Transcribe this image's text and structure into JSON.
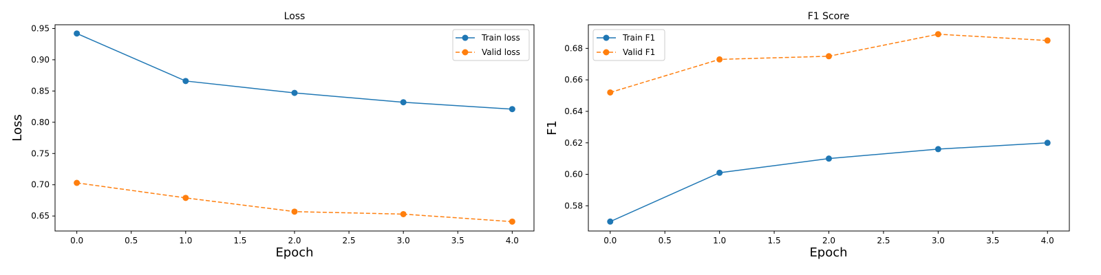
{
  "chart_data": [
    {
      "type": "line",
      "title": "Loss",
      "xlabel": "Epoch",
      "ylabel": "Loss",
      "xlim": [
        -0.2,
        4.2
      ],
      "ylim": [
        0.626,
        0.956
      ],
      "xticks": [
        0.0,
        0.5,
        1.0,
        1.5,
        2.0,
        2.5,
        3.0,
        3.5,
        4.0
      ],
      "xtick_labels": [
        "0.0",
        "0.5",
        "1.0",
        "1.5",
        "2.0",
        "2.5",
        "3.0",
        "3.5",
        "4.0"
      ],
      "yticks": [
        0.65,
        0.7,
        0.75,
        0.8,
        0.85,
        0.9,
        0.95
      ],
      "ytick_labels": [
        "0.65",
        "0.70",
        "0.75",
        "0.80",
        "0.85",
        "0.90",
        "0.95"
      ],
      "grid": false,
      "legend_position": "top-right",
      "x": [
        0,
        1,
        2,
        3,
        4
      ],
      "series": [
        {
          "name": "Train loss",
          "values": [
            0.942,
            0.866,
            0.847,
            0.832,
            0.821
          ],
          "color": "#1f77b4",
          "dash": "solid"
        },
        {
          "name": "Valid loss",
          "values": [
            0.703,
            0.679,
            0.657,
            0.653,
            0.641
          ],
          "color": "#ff7f0e",
          "dash": "dashed"
        }
      ]
    },
    {
      "type": "line",
      "title": "F1 Score",
      "xlabel": "Epoch",
      "ylabel": "F1",
      "xlim": [
        -0.2,
        4.2
      ],
      "ylim": [
        0.564,
        0.695
      ],
      "xticks": [
        0.0,
        0.5,
        1.0,
        1.5,
        2.0,
        2.5,
        3.0,
        3.5,
        4.0
      ],
      "xtick_labels": [
        "0.0",
        "0.5",
        "1.0",
        "1.5",
        "2.0",
        "2.5",
        "3.0",
        "3.5",
        "4.0"
      ],
      "yticks": [
        0.58,
        0.6,
        0.62,
        0.64,
        0.66,
        0.68
      ],
      "ytick_labels": [
        "0.58",
        "0.60",
        "0.62",
        "0.64",
        "0.66",
        "0.68"
      ],
      "grid": false,
      "legend_position": "top-left",
      "x": [
        0,
        1,
        2,
        3,
        4
      ],
      "series": [
        {
          "name": "Train F1",
          "values": [
            0.57,
            0.601,
            0.61,
            0.616,
            0.62
          ],
          "color": "#1f77b4",
          "dash": "solid"
        },
        {
          "name": "Valid F1",
          "values": [
            0.652,
            0.673,
            0.675,
            0.689,
            0.685
          ],
          "color": "#ff7f0e",
          "dash": "dashed"
        }
      ]
    }
  ]
}
